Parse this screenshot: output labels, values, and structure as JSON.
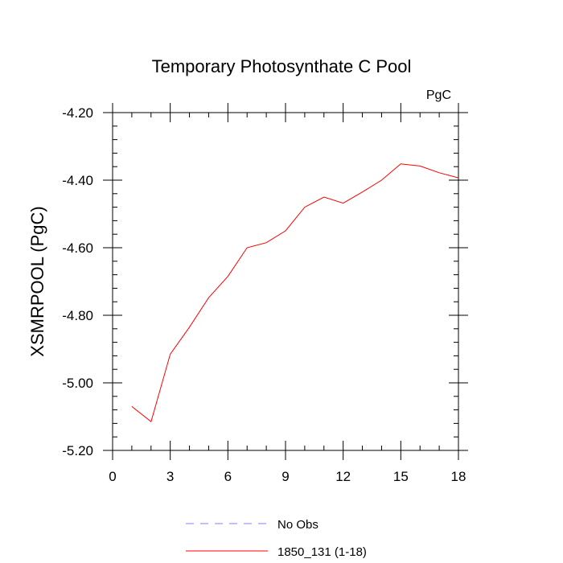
{
  "chart_data": {
    "type": "line",
    "title": "Temporary Photosynthate C Pool",
    "units_label": "PgC",
    "ylabel": "XSMRPOOL  (PgC)",
    "xlabel": "",
    "xlim": [
      0,
      18
    ],
    "ylim": [
      -5.2,
      -4.2
    ],
    "xticks": [
      0,
      3,
      6,
      9,
      12,
      15,
      18
    ],
    "xtick_labels": [
      "0",
      "3",
      "6",
      "9",
      "12",
      "15",
      "18"
    ],
    "yticks": [
      -4.2,
      -4.4,
      -4.6,
      -4.8,
      -5.0,
      -5.2
    ],
    "ytick_labels": [
      "-4.20",
      "-4.40",
      "-4.60",
      "-4.80",
      "-5.00",
      "-5.20"
    ],
    "grid": false,
    "legend_position": "bottom",
    "series": [
      {
        "name": "No Obs",
        "color": "#8080ff",
        "dash": "dashed",
        "x": [],
        "y": []
      },
      {
        "name": "1850_131 (1-18)",
        "color": "#ff0000",
        "dash": "solid",
        "x": [
          1,
          2,
          3,
          4,
          5,
          6,
          7,
          8,
          9,
          10,
          11,
          12,
          13,
          14,
          15,
          16,
          17,
          18
        ],
        "y": [
          -5.07,
          -5.115,
          -4.915,
          -4.835,
          -4.748,
          -4.685,
          -4.6,
          -4.585,
          -4.55,
          -4.48,
          -4.45,
          -4.468,
          -4.435,
          -4.4,
          -4.352,
          -4.358,
          -4.378,
          -4.393
        ]
      }
    ]
  }
}
